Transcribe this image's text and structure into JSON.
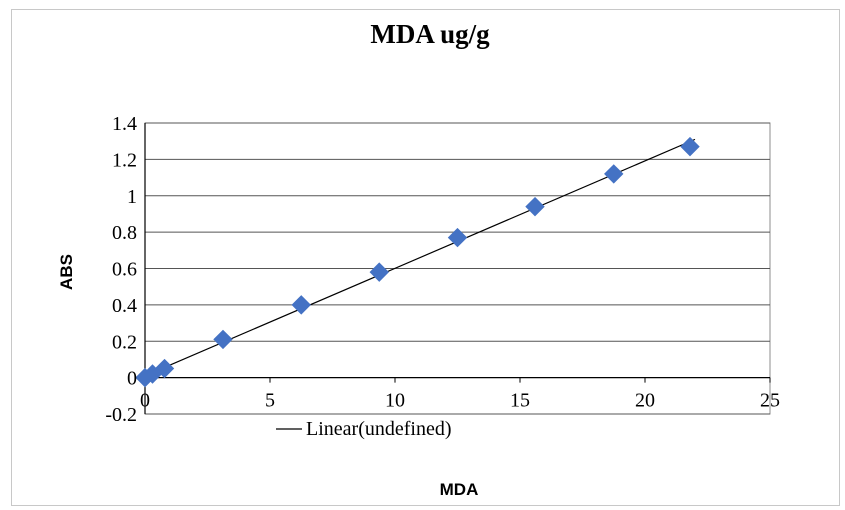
{
  "chart_data": {
    "type": "scatter",
    "title": "MDA ug/g",
    "xlabel": "MDA",
    "ylabel": "ABS",
    "xlim": [
      0,
      25
    ],
    "ylim": [
      -0.2,
      1.4
    ],
    "xticks": [
      0,
      5,
      10,
      15,
      20,
      25
    ],
    "yticks": [
      -0.2,
      0,
      0.2,
      0.4,
      0.6,
      0.8,
      1,
      1.2,
      1.4
    ],
    "xtick_labels": [
      "0",
      "5",
      "10",
      "15",
      "20",
      "25"
    ],
    "ytick_labels": [
      "-0.2",
      "0",
      "0.2",
      "0.4",
      "0.6",
      "0.8",
      "1",
      "1.2",
      "1.4"
    ],
    "grid": "horizontal",
    "series": [
      {
        "marker": "diamond",
        "color": "#4472c4",
        "x": [
          0,
          0.3,
          0.78,
          3.12,
          6.25,
          9.37,
          12.5,
          15.6,
          18.75,
          21.8
        ],
        "y": [
          0,
          0.02,
          0.05,
          0.21,
          0.4,
          0.58,
          0.77,
          0.94,
          1.12,
          1.27
        ]
      }
    ],
    "trendline": {
      "type": "linear",
      "color": "#000000",
      "legend_label": "Linear(undefined)",
      "x": [
        0,
        22
      ],
      "y": [
        0.01,
        1.31
      ]
    }
  }
}
